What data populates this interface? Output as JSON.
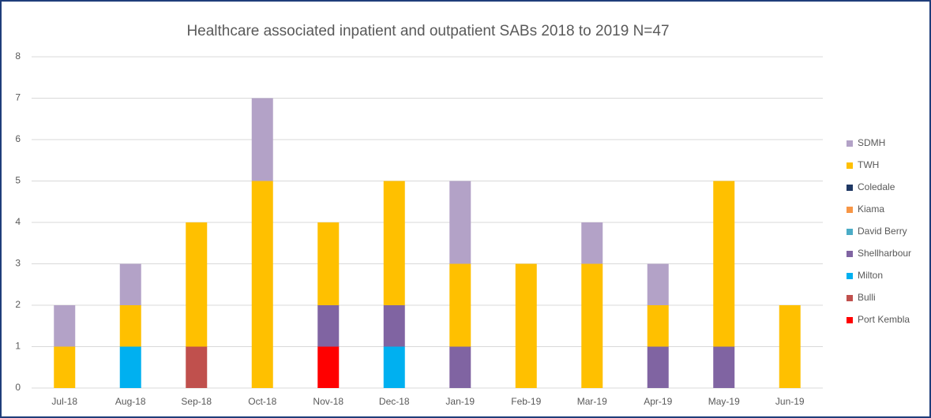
{
  "chart_data": {
    "type": "stacked_bar",
    "title": "Healthcare associated inpatient and outpatient SABs 2018 to 2019 N=47",
    "categories": [
      "Jul-18",
      "Aug-18",
      "Sep-18",
      "Oct-18",
      "Nov-18",
      "Dec-18",
      "Jan-19",
      "Feb-19",
      "Mar-19",
      "Apr-19",
      "May-19",
      "Jun-19"
    ],
    "series": [
      {
        "name": "Port Kembla",
        "color": "#ff0000",
        "values": [
          0,
          0,
          0,
          0,
          1,
          0,
          0,
          0,
          0,
          0,
          0,
          0
        ]
      },
      {
        "name": "Bulli",
        "color": "#c0504d",
        "values": [
          0,
          0,
          1,
          0,
          0,
          0,
          0,
          0,
          0,
          0,
          0,
          0
        ]
      },
      {
        "name": "Milton",
        "color": "#00b0f0",
        "values": [
          0,
          1,
          0,
          0,
          0,
          1,
          0,
          0,
          0,
          0,
          0,
          0
        ]
      },
      {
        "name": "Shellharbour",
        "color": "#8064a2",
        "values": [
          0,
          0,
          0,
          0,
          1,
          1,
          1,
          0,
          0,
          1,
          1,
          0
        ]
      },
      {
        "name": "David Berry",
        "color": "#4bacc6",
        "values": [
          0,
          0,
          0,
          0,
          0,
          0,
          0,
          0,
          0,
          0,
          0,
          0
        ]
      },
      {
        "name": "Kiama",
        "color": "#f79646",
        "values": [
          0,
          0,
          0,
          0,
          0,
          0,
          0,
          0,
          0,
          0,
          0,
          0
        ]
      },
      {
        "name": "Coledale",
        "color": "#1f3864",
        "values": [
          0,
          0,
          0,
          0,
          0,
          0,
          0,
          0,
          0,
          0,
          0,
          0
        ]
      },
      {
        "name": "TWH",
        "color": "#ffc000",
        "values": [
          1,
          1,
          3,
          5,
          2,
          3,
          2,
          3,
          3,
          1,
          4,
          2
        ]
      },
      {
        "name": "SDMH",
        "color": "#b3a2c7",
        "values": [
          1,
          1,
          0,
          2,
          0,
          0,
          2,
          0,
          1,
          1,
          0,
          0
        ]
      }
    ],
    "ylim": [
      0,
      8
    ],
    "yticks": [
      0,
      1,
      2,
      3,
      4,
      5,
      6,
      7,
      8
    ],
    "grid": true,
    "legend": "right"
  }
}
